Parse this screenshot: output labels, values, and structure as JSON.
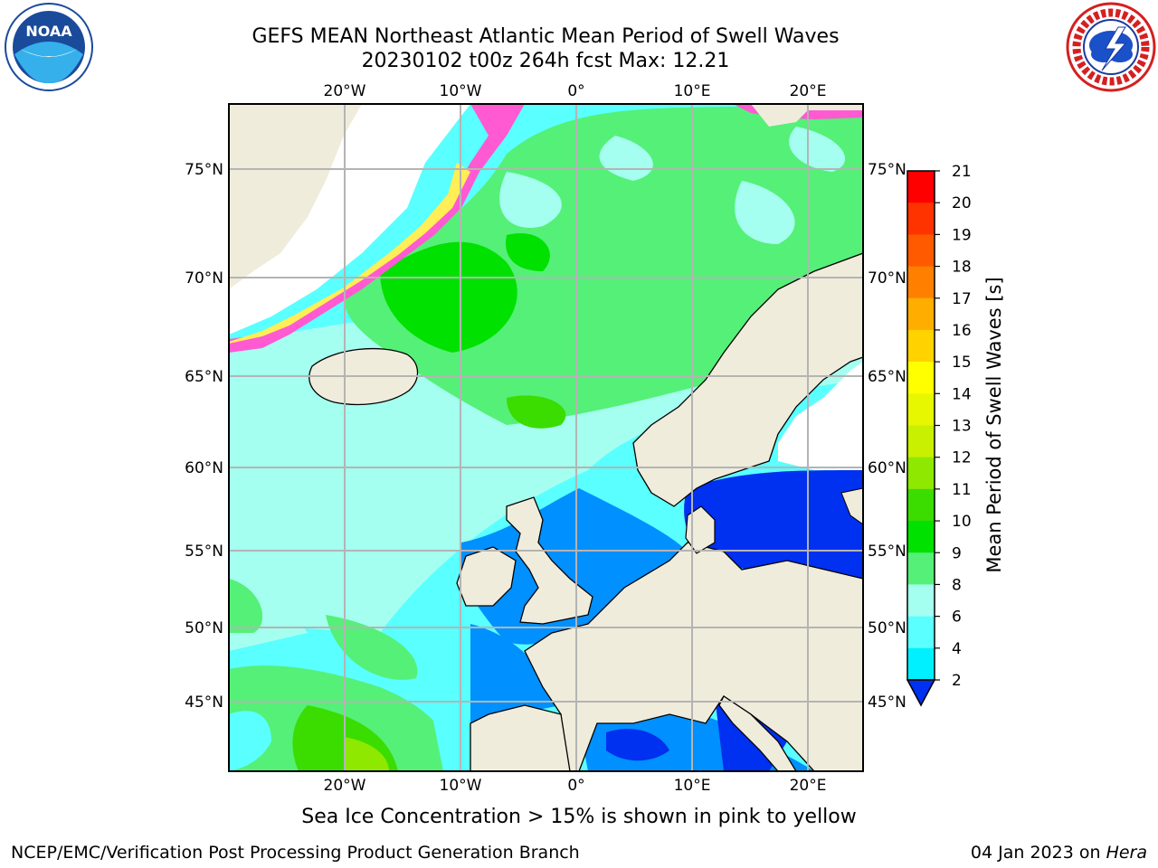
{
  "title": {
    "line1": "GEFS MEAN Northeast Atlantic Mean Period of Swell Waves",
    "line2": "20230102 t00z 264h fcst   Max: 12.21"
  },
  "caption": "Sea Ice Concentration > 15% is shown in pink to yellow",
  "footer": {
    "left": "NCEP/EMC/Verification Post Processing Product Generation Branch",
    "right_date": "04 Jan 2023 on ",
    "right_host": "Hera"
  },
  "logos": {
    "left": {
      "icon": "noaa-logo-icon",
      "text": "NOAA"
    },
    "right": {
      "icon": "nws-logo-icon",
      "text": "NATIONAL WEATHER SERVICE"
    }
  },
  "map": {
    "lon_ticks": [
      "20°W",
      "10°W",
      "0°",
      "10°E",
      "20°E"
    ],
    "lat_ticks": [
      "75°N",
      "70°N",
      "65°N",
      "60°N",
      "55°N",
      "50°N",
      "45°N"
    ],
    "colors": {
      "land": "#efecdc",
      "grid": "#b4b4b4",
      "ice_pink": "#ff5ad2",
      "ice_yellow": "#ffee55"
    }
  },
  "colorbar": {
    "label": "Mean Period of Swell Waves [s]",
    "ticks": [
      "21",
      "20",
      "19",
      "18",
      "17",
      "16",
      "15",
      "14",
      "13",
      "12",
      "11",
      "10",
      "9",
      "8",
      "6",
      "4",
      "2"
    ],
    "colors": [
      "#ff0000",
      "#ff3300",
      "#ff5a00",
      "#ff8000",
      "#ffae00",
      "#ffd200",
      "#ffff00",
      "#e6f700",
      "#c8f000",
      "#8ee800",
      "#3bdc00",
      "#00e100",
      "#55f078",
      "#a5fff0",
      "#5affff",
      "#00f0ff",
      "#0090ff",
      "#0030f0"
    ]
  }
}
